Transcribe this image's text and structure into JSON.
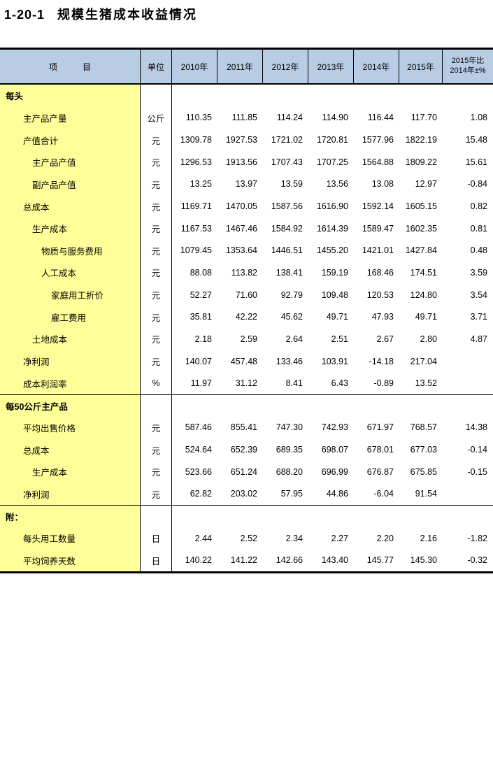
{
  "page": {
    "title_number": "1-20-1",
    "title_text": "规模生猪成本收益情况"
  },
  "table": {
    "colors": {
      "header_bg": "#B8CCE4",
      "item_bg": "#FFFF99",
      "border": "#000000"
    },
    "header": {
      "item": "项　　　目",
      "unit": "单位",
      "years": [
        "2010年",
        "2011年",
        "2012年",
        "2013年",
        "2014年",
        "2015年"
      ],
      "change_line1": "2015年比",
      "change_line2": "2014年±%"
    },
    "rows": [
      {
        "label": "每头",
        "indent": 0,
        "bold": true,
        "section": true,
        "unit": "",
        "values": [
          "",
          "",
          "",
          "",
          "",
          "",
          ""
        ]
      },
      {
        "label": "主产品产量",
        "indent": 1,
        "unit": "公斤",
        "values": [
          "110.35",
          "111.85",
          "114.24",
          "114.90",
          "116.44",
          "117.70",
          "1.08"
        ]
      },
      {
        "label": "产值合计",
        "indent": 1,
        "unit": "元",
        "values": [
          "1309.78",
          "1927.53",
          "1721.02",
          "1720.81",
          "1577.96",
          "1822.19",
          "15.48"
        ]
      },
      {
        "label": "主产品产值",
        "indent": 2,
        "unit": "元",
        "values": [
          "1296.53",
          "1913.56",
          "1707.43",
          "1707.25",
          "1564.88",
          "1809.22",
          "15.61"
        ]
      },
      {
        "label": "副产品产值",
        "indent": 2,
        "unit": "元",
        "values": [
          "13.25",
          "13.97",
          "13.59",
          "13.56",
          "13.08",
          "12.97",
          "-0.84"
        ]
      },
      {
        "label": "总成本",
        "indent": 1,
        "unit": "元",
        "values": [
          "1169.71",
          "1470.05",
          "1587.56",
          "1616.90",
          "1592.14",
          "1605.15",
          "0.82"
        ]
      },
      {
        "label": "生产成本",
        "indent": 2,
        "unit": "元",
        "values": [
          "1167.53",
          "1467.46",
          "1584.92",
          "1614.39",
          "1589.47",
          "1602.35",
          "0.81"
        ]
      },
      {
        "label": "物质与服务费用",
        "indent": 3,
        "unit": "元",
        "values": [
          "1079.45",
          "1353.64",
          "1446.51",
          "1455.20",
          "1421.01",
          "1427.84",
          "0.48"
        ]
      },
      {
        "label": "人工成本",
        "indent": 3,
        "unit": "元",
        "values": [
          "88.08",
          "113.82",
          "138.41",
          "159.19",
          "168.46",
          "174.51",
          "3.59"
        ]
      },
      {
        "label": "家庭用工折价",
        "indent": 4,
        "unit": "元",
        "values": [
          "52.27",
          "71.60",
          "92.79",
          "109.48",
          "120.53",
          "124.80",
          "3.54"
        ]
      },
      {
        "label": "雇工费用",
        "indent": 4,
        "unit": "元",
        "values": [
          "35.81",
          "42.22",
          "45.62",
          "49.71",
          "47.93",
          "49.71",
          "3.71"
        ]
      },
      {
        "label": "土地成本",
        "indent": 2,
        "unit": "元",
        "values": [
          "2.18",
          "2.59",
          "2.64",
          "2.51",
          "2.67",
          "2.80",
          "4.87"
        ]
      },
      {
        "label": "净利润",
        "indent": 1,
        "unit": "元",
        "values": [
          "140.07",
          "457.48",
          "133.46",
          "103.91",
          "-14.18",
          "217.04",
          ""
        ]
      },
      {
        "label": "成本利润率",
        "indent": 1,
        "unit": "%",
        "values": [
          "11.97",
          "31.12",
          "8.41",
          "6.43",
          "-0.89",
          "13.52",
          ""
        ]
      },
      {
        "label": "每50公斤主产品",
        "indent": 0,
        "bold": true,
        "section": true,
        "divider": true,
        "unit": "",
        "values": [
          "",
          "",
          "",
          "",
          "",
          "",
          ""
        ]
      },
      {
        "label": "平均出售价格",
        "indent": 1,
        "unit": "元",
        "values": [
          "587.46",
          "855.41",
          "747.30",
          "742.93",
          "671.97",
          "768.57",
          "14.38"
        ]
      },
      {
        "label": "总成本",
        "indent": 1,
        "unit": "元",
        "values": [
          "524.64",
          "652.39",
          "689.35",
          "698.07",
          "678.01",
          "677.03",
          "-0.14"
        ]
      },
      {
        "label": "生产成本",
        "indent": 2,
        "unit": "元",
        "values": [
          "523.66",
          "651.24",
          "688.20",
          "696.99",
          "676.87",
          "675.85",
          "-0.15"
        ]
      },
      {
        "label": "净利润",
        "indent": 1,
        "unit": "元",
        "values": [
          "62.82",
          "203.02",
          "57.95",
          "44.86",
          "-6.04",
          "91.54",
          ""
        ]
      },
      {
        "label": "附：",
        "indent": 0,
        "bold": true,
        "section": true,
        "divider": true,
        "unit": "",
        "values": [
          "",
          "",
          "",
          "",
          "",
          "",
          ""
        ]
      },
      {
        "label": "每头用工数量",
        "indent": 1,
        "unit": "日",
        "values": [
          "2.44",
          "2.52",
          "2.34",
          "2.27",
          "2.20",
          "2.16",
          "-1.82"
        ]
      },
      {
        "label": "平均饲养天数",
        "indent": 1,
        "unit": "日",
        "values": [
          "140.22",
          "141.22",
          "142.66",
          "143.40",
          "145.77",
          "145.30",
          "-0.32"
        ]
      }
    ]
  }
}
